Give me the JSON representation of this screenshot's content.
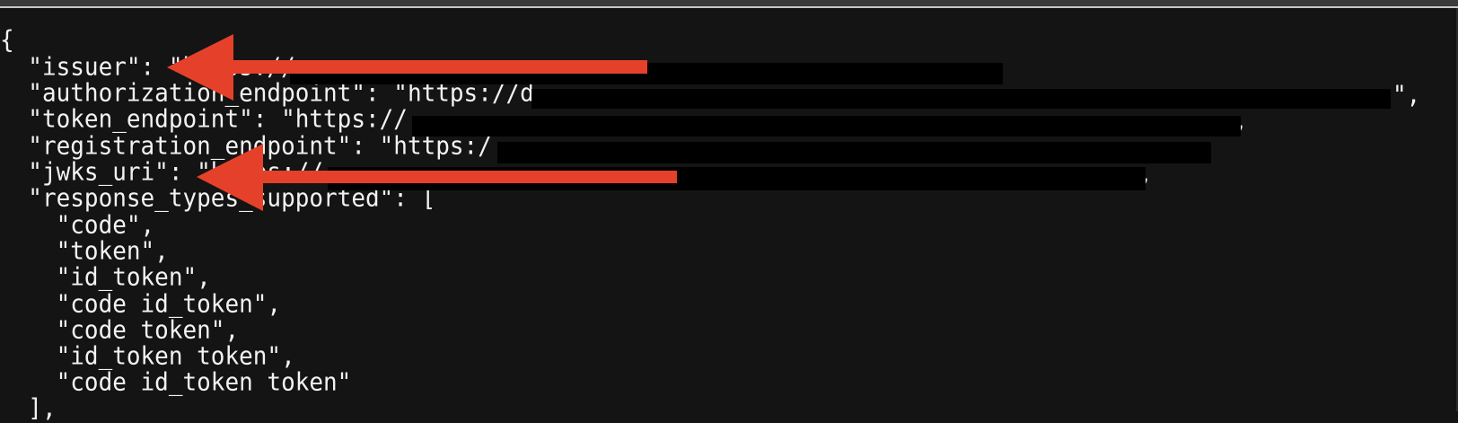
{
  "terminal": {
    "lines": [
      "{",
      "  \"issuer\": \"https://",
      "  \"authorization_endpoint\": \"https://d",
      "  \"token_endpoint\": \"https://",
      "  \"registration_endpoint\": \"https:/",
      "  \"jwks_uri\": \"https://",
      "  \"response_types_supported\": [",
      "    \"code\",",
      "    \"token\",",
      "    \"id_token\",",
      "    \"code id_token\",",
      "    \"code token\",",
      "    \"id_token token\",",
      "    \"code id_token token\"",
      "  ],"
    ],
    "line_suffixes": {
      "issuer": ",",
      "authorization_endpoint": "\",",
      "token_endpoint": ",",
      "jwks_uri": ","
    }
  },
  "annotations": {
    "arrow_color": "#e5412a",
    "redaction_color": "#000000"
  }
}
